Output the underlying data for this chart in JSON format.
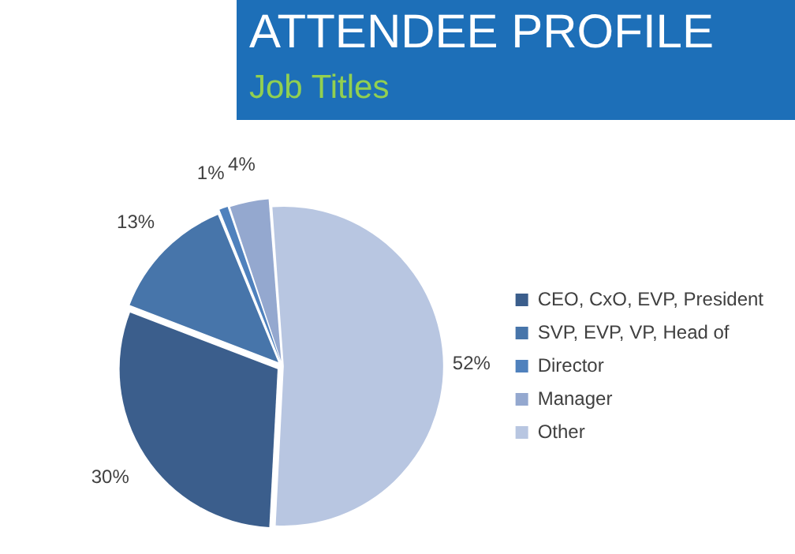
{
  "chart_data": {
    "type": "pie",
    "title": "ATTENDEE PROFILE",
    "subtitle": "Job Titles",
    "categories": [
      "CEO, CxO, EVP, President",
      "SVP, EVP, VP, Head of",
      "Director",
      "Manager",
      "Other"
    ],
    "values": [
      30,
      13,
      1,
      4,
      52
    ],
    "value_labels": [
      "30%",
      "13%",
      "1%",
      "4%",
      "52%"
    ],
    "colors": [
      "#3b5e8c",
      "#4775aa",
      "#4f81bd",
      "#94a8cf",
      "#b8c6e1"
    ],
    "legend": "right"
  }
}
